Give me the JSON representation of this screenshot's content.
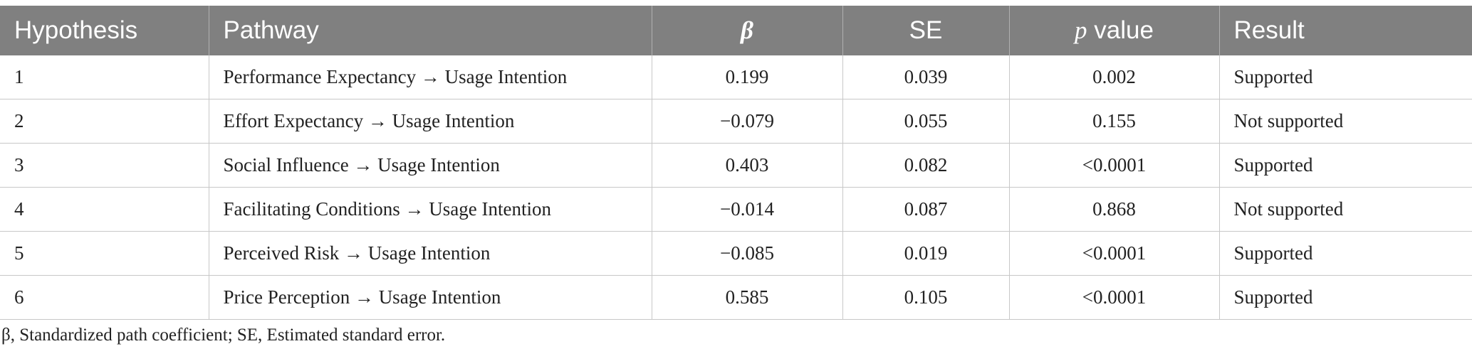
{
  "table": {
    "headers": [
      {
        "label": "Hypothesis"
      },
      {
        "label": "Pathway"
      },
      {
        "label": "β"
      },
      {
        "label": "SE"
      },
      {
        "label_italic": "p",
        "label": " value"
      },
      {
        "label": "Result"
      }
    ],
    "rows": [
      {
        "hypothesis": "1",
        "pathway": "Performance Expectancy → Usage Intention",
        "beta": "0.199",
        "se": "0.039",
        "p": "0.002",
        "result": "Supported"
      },
      {
        "hypothesis": "2",
        "pathway": "Effort Expectancy → Usage Intention",
        "beta": "−0.079",
        "se": "0.055",
        "p": "0.155",
        "result": "Not supported"
      },
      {
        "hypothesis": "3",
        "pathway": "Social Influence → Usage Intention",
        "beta": "0.403",
        "se": "0.082",
        "p": "<0.0001",
        "result": "Supported"
      },
      {
        "hypothesis": "4",
        "pathway": "Facilitating Conditions → Usage Intention",
        "beta": "−0.014",
        "se": "0.087",
        "p": "0.868",
        "result": "Not supported"
      },
      {
        "hypothesis": "5",
        "pathway": "Perceived Risk → Usage Intention",
        "beta": "−0.085",
        "se": "0.019",
        "p": "<0.0001",
        "result": "Supported"
      },
      {
        "hypothesis": "6",
        "pathway": "Price Perception → Usage Intention",
        "beta": "0.585",
        "se": "0.105",
        "p": "<0.0001",
        "result": "Supported"
      }
    ]
  },
  "footnote": "β, Standardized path coefficient; SE, Estimated standard error."
}
